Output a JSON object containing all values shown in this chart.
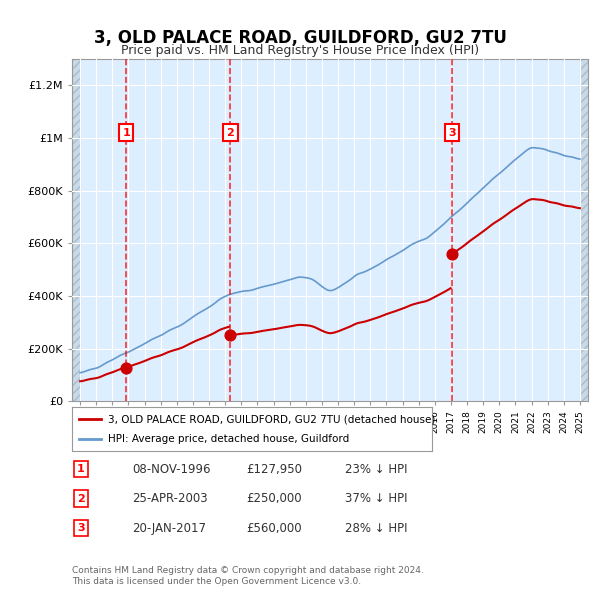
{
  "title": "3, OLD PALACE ROAD, GUILDFORD, GU2 7TU",
  "subtitle": "Price paid vs. HM Land Registry's House Price Index (HPI)",
  "legend_line1": "3, OLD PALACE ROAD, GUILDFORD, GU2 7TU (detached house)",
  "legend_line2": "HPI: Average price, detached house, Guildford",
  "footer": "Contains HM Land Registry data © Crown copyright and database right 2024.\nThis data is licensed under the Open Government Licence v3.0.",
  "sales": [
    {
      "num": 1,
      "date": "08-NOV-1996",
      "year": 1996.86,
      "price": 127950,
      "pct": "23% ↓ HPI"
    },
    {
      "num": 2,
      "date": "25-APR-2003",
      "year": 2003.32,
      "price": 250000,
      "pct": "37% ↓ HPI"
    },
    {
      "num": 3,
      "date": "20-JAN-2017",
      "year": 2017.05,
      "price": 560000,
      "pct": "28% ↓ HPI"
    }
  ],
  "red_line_color": "#cc0000",
  "blue_line_color": "#6699cc",
  "background_color": "#ddeeff",
  "hatch_color": "#bbccdd",
  "grid_color": "#ffffff",
  "ylim": [
    0,
    1300000
  ],
  "xlim_start": 1993.5,
  "xlim_end": 2025.5,
  "hpi_start_year": 1994,
  "hpi_end_year": 2025
}
